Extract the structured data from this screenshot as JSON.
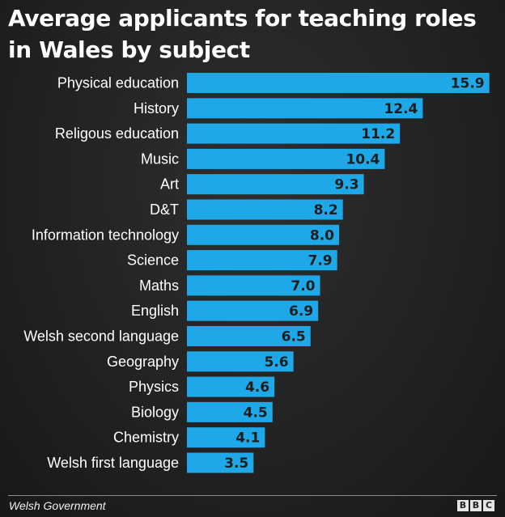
{
  "chart_data": {
    "type": "bar",
    "orientation": "horizontal",
    "title": "Average applicants for teaching roles in Wales by subject",
    "categories": [
      "Physical education",
      "History",
      "Religous education",
      "Music",
      "Art",
      "D&T",
      "Information technology",
      "Science",
      "Maths",
      "English",
      "Welsh second language",
      "Geography",
      "Physics",
      "Biology",
      "Chemistry",
      "Welsh first language"
    ],
    "values": [
      15.9,
      12.4,
      11.2,
      10.4,
      9.3,
      8.2,
      8.0,
      7.9,
      7.0,
      6.9,
      6.5,
      5.6,
      4.6,
      4.5,
      4.1,
      3.5
    ],
    "value_labels": [
      "15.9",
      "12.4",
      "11.2",
      "10.4",
      "9.3",
      "8.2",
      "8.0",
      "7.9",
      "7.0",
      "6.9",
      "6.5",
      "5.6",
      "4.6",
      "4.5",
      "4.1",
      "3.5"
    ],
    "xlim": [
      0,
      16
    ],
    "grid": false,
    "colors": {
      "bar": "#1fa8e8",
      "value_label": "#1d1d1d",
      "category_label": "#ffffff",
      "background": "#222222"
    }
  },
  "footer": {
    "source": "Welsh Government",
    "logo_letters": [
      "B",
      "B",
      "C"
    ]
  }
}
